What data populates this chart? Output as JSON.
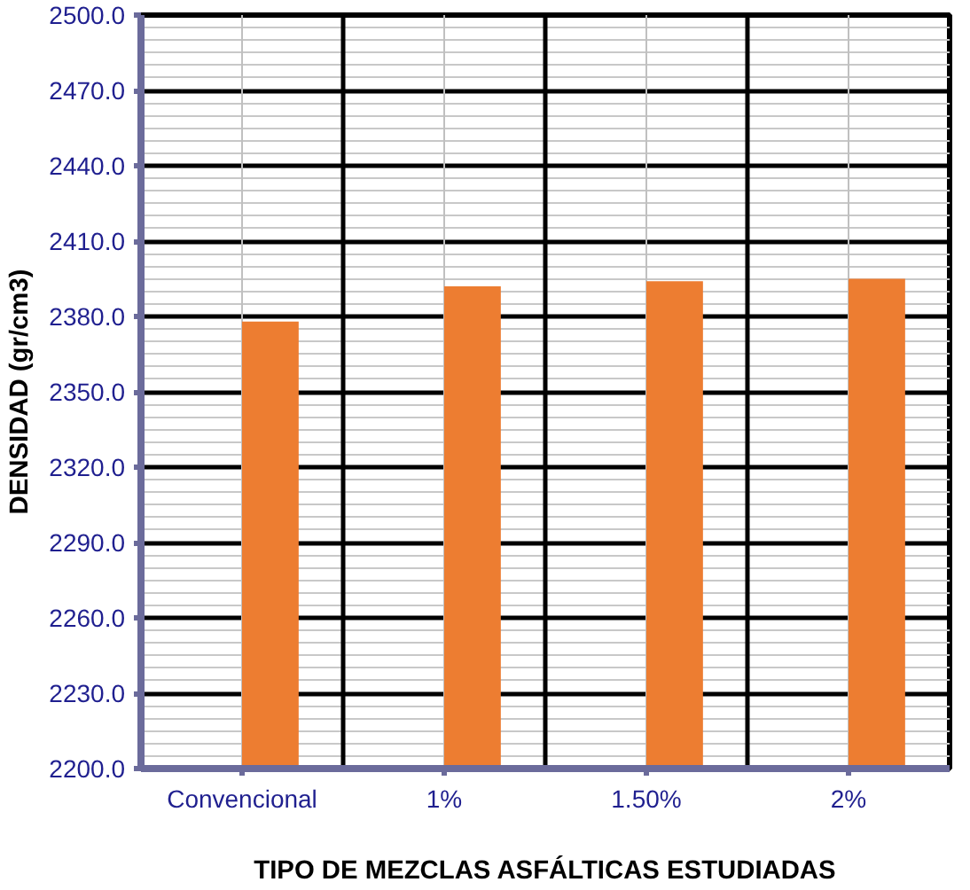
{
  "chart_data": {
    "type": "bar",
    "xlabel": "TIPO DE MEZCLAS ASFÁLTICAS ESTUDIADAS",
    "ylabel": "DENSIDAD (gr/cm3)",
    "categories": [
      "Convencional",
      "1%",
      "1.50%",
      "2%"
    ],
    "values": [
      2378,
      2392,
      2394,
      2395
    ],
    "color": "#ed7d31",
    "ylim": [
      2200,
      2500
    ],
    "yticks": [
      {
        "value": 2200,
        "label": "2200.0"
      },
      {
        "value": 2230,
        "label": "2230.0"
      },
      {
        "value": 2260,
        "label": "2260.0"
      },
      {
        "value": 2290,
        "label": "2290.0"
      },
      {
        "value": 2320,
        "label": "2320.0"
      },
      {
        "value": 2350,
        "label": "2350.0"
      },
      {
        "value": 2380,
        "label": "2380.0"
      },
      {
        "value": 2410,
        "label": "2410.0"
      },
      {
        "value": 2440,
        "label": "2440.0"
      },
      {
        "value": 2470,
        "label": "2470.0"
      },
      {
        "value": 2500,
        "label": "2500.0"
      }
    ],
    "grid": true
  }
}
